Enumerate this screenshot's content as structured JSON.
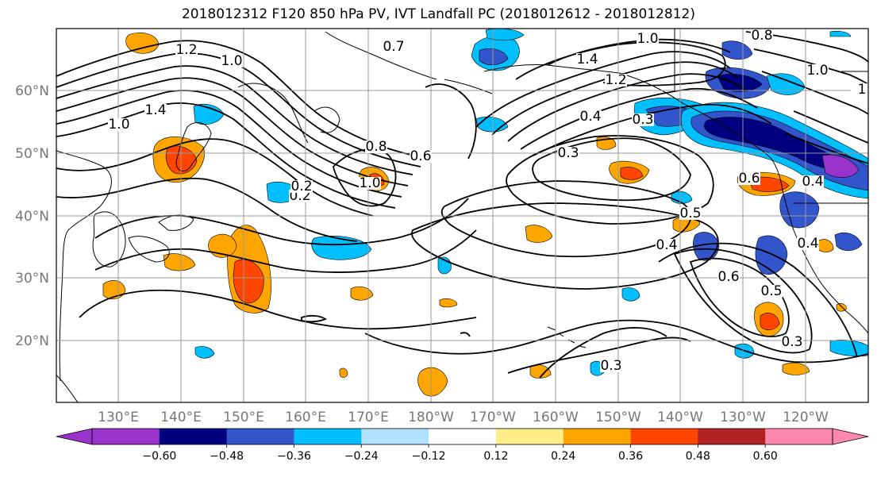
{
  "title": "2018012312 F120 850 hPa PV, IVT Landfall PC (2018012612 - 2018012812)",
  "lon_ticks": [
    "130°E",
    "140°E",
    "150°E",
    "160°E",
    "170°E",
    "180°W",
    "170°W",
    "160°W",
    "150°W",
    "140°W",
    "130°W",
    "120°W"
  ],
  "lat_ticks": [
    "60°N",
    "50°N",
    "40°N",
    "30°N",
    "20°N"
  ],
  "contour_labels": [
    "1.2",
    "1.0",
    "1.4",
    "1.0",
    "0.7",
    "1.0",
    "1.4",
    "0.8",
    "1.0",
    "1.2",
    "0.4",
    "0.3",
    "0.2",
    "0.8",
    "0.6",
    "1.0",
    "0.3",
    "0.2",
    "0.6",
    "0.4",
    "0.5",
    "0.4",
    "0.6",
    "0.5",
    "0.4",
    "0.3",
    "0.3",
    "1"
  ],
  "colorbar": {
    "colors": [
      "#9933cc",
      "#000080",
      "#3355cc",
      "#00bfff",
      "#b0e2ff",
      "#ffffff",
      "#ffee88",
      "#ffa500",
      "#ff4500",
      "#b22222",
      "#ff88b0"
    ],
    "tick_labels": [
      "−0.60",
      "−0.48",
      "−0.36",
      "−0.24",
      "−0.12",
      "0.12",
      "0.24",
      "0.36",
      "0.48",
      "0.60"
    ]
  }
}
